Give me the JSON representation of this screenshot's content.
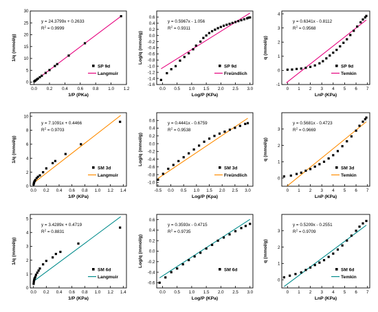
{
  "colors": {
    "langmuir_fit": "#e6007e",
    "other_fit": "#ff8c00",
    "sm6d_fit": "#008b8b",
    "points": "#000000",
    "axis": "#000000"
  },
  "chart_data": [
    {
      "type": "scatter",
      "panel": "SP 9d Langmuir",
      "xlabel": "1/P (PKa)",
      "ylabel": "1/q (mmol/g)",
      "xlim": [
        -0.05,
        1.2
      ],
      "ylim": [
        -1,
        30
      ],
      "xticks": [
        0.0,
        0.2,
        0.4,
        0.6,
        0.8,
        1.0,
        1.2
      ],
      "yticks": [
        0,
        5,
        10,
        15,
        20,
        25,
        30
      ],
      "equation": "y = 24.3799x + 0.2633",
      "r2_label": "R",
      "r2_value": "= 0.9999",
      "legend_marker_label": "SP 9d",
      "legend_line_label": "Langmuir",
      "line_color": "#e6007e",
      "fit": {
        "slope": 24.3799,
        "intercept": 0.2633,
        "x_range": [
          0.0,
          1.13
        ]
      },
      "points": [
        [
          0.003,
          0.33
        ],
        [
          0.01,
          0.5
        ],
        [
          0.02,
          0.75
        ],
        [
          0.035,
          1.1
        ],
        [
          0.05,
          1.5
        ],
        [
          0.075,
          2.1
        ],
        [
          0.1,
          2.7
        ],
        [
          0.15,
          3.9
        ],
        [
          0.2,
          5.1
        ],
        [
          0.27,
          6.8
        ],
        [
          0.3,
          7.6
        ],
        [
          0.45,
          11.2
        ],
        [
          0.66,
          16.4
        ],
        [
          1.13,
          27.8
        ]
      ]
    },
    {
      "type": "scatter",
      "panel": "SP 9d Freundlich",
      "xlabel": "Log/P (KPa)",
      "ylabel": "Log/q (mmol/g)",
      "xlim": [
        -0.2,
        3.1
      ],
      "ylim": [
        -1.6,
        0.8
      ],
      "xticks": [
        0.0,
        0.5,
        1.0,
        1.5,
        2.0,
        2.5,
        3.0
      ],
      "yticks": [
        -1.6,
        -1.4,
        -1.2,
        -1.0,
        -0.8,
        -0.6,
        -0.4,
        -0.2,
        0.0,
        0.2,
        0.4,
        0.6
      ],
      "equation": "y = 0.5967x - 1.056",
      "r2_label": "R",
      "r2_value": "= 0.9311",
      "legend_marker_label": "SP 9d",
      "legend_line_label": "Freündlich",
      "line_color": "#e6007e",
      "fit": {
        "slope": 0.5967,
        "intercept": -1.056,
        "x_range": [
          -0.05,
          3.0
        ]
      },
      "points": [
        [
          -0.05,
          -1.45
        ],
        [
          0.15,
          -1.23
        ],
        [
          0.3,
          -1.1
        ],
        [
          0.45,
          -1.0
        ],
        [
          0.6,
          -0.82
        ],
        [
          0.75,
          -0.7
        ],
        [
          0.9,
          -0.58
        ],
        [
          1.05,
          -0.45
        ],
        [
          1.15,
          -0.33
        ],
        [
          1.3,
          -0.2
        ],
        [
          1.4,
          -0.08
        ],
        [
          1.5,
          0.0
        ],
        [
          1.6,
          0.08
        ],
        [
          1.7,
          0.14
        ],
        [
          1.8,
          0.19
        ],
        [
          1.9,
          0.24
        ],
        [
          2.0,
          0.28
        ],
        [
          2.1,
          0.32
        ],
        [
          2.2,
          0.35
        ],
        [
          2.3,
          0.38
        ],
        [
          2.4,
          0.41
        ],
        [
          2.5,
          0.44
        ],
        [
          2.6,
          0.47
        ],
        [
          2.7,
          0.5
        ],
        [
          2.8,
          0.53
        ],
        [
          2.9,
          0.56
        ],
        [
          2.95,
          0.58
        ],
        [
          3.0,
          0.59
        ]
      ]
    },
    {
      "type": "scatter",
      "panel": "SP 9d Temkin",
      "xlabel": "LnP (KPa)",
      "ylabel": "q (mmol/g)",
      "xlim": [
        -0.5,
        7.2
      ],
      "ylim": [
        -1,
        4.2
      ],
      "xticks": [
        0,
        1,
        2,
        3,
        4,
        5,
        6,
        7
      ],
      "yticks": [
        -1,
        0,
        1,
        2,
        3,
        4
      ],
      "equation": "y = 0.6341x - 0.8112",
      "r2_label": "R",
      "r2_value": "= 0.9568",
      "legend_marker_label": "SP 9d",
      "legend_line_label": "Temkin",
      "line_color": "#e6007e",
      "fit": {
        "slope": 0.6341,
        "intercept": -0.8112,
        "x_range": [
          -0.1,
          6.9
        ]
      },
      "points": [
        [
          0.0,
          0.05
        ],
        [
          0.4,
          0.06
        ],
        [
          0.8,
          0.1
        ],
        [
          1.2,
          0.13
        ],
        [
          1.6,
          0.18
        ],
        [
          2.0,
          0.25
        ],
        [
          2.4,
          0.35
        ],
        [
          2.8,
          0.5
        ],
        [
          3.1,
          0.65
        ],
        [
          3.4,
          0.85
        ],
        [
          3.7,
          1.05
        ],
        [
          4.0,
          1.25
        ],
        [
          4.3,
          1.45
        ],
        [
          4.6,
          1.7
        ],
        [
          4.9,
          1.95
        ],
        [
          5.2,
          2.2
        ],
        [
          5.5,
          2.5
        ],
        [
          5.8,
          2.8
        ],
        [
          6.1,
          3.1
        ],
        [
          6.4,
          3.4
        ],
        [
          6.6,
          3.6
        ],
        [
          6.8,
          3.75
        ],
        [
          6.9,
          3.85
        ]
      ]
    },
    {
      "type": "scatter",
      "panel": "SM 3d Langmuir",
      "xlabel": "1/P (KPa)",
      "ylabel": "1/q (mmol/g)",
      "xlim": [
        -0.05,
        1.45
      ],
      "ylim": [
        0,
        10.5
      ],
      "xticks": [
        0.0,
        0.2,
        0.4,
        0.6,
        0.8,
        1.0,
        1.2,
        1.4
      ],
      "yticks": [
        0,
        2,
        4,
        6,
        8,
        10
      ],
      "equation": "y = 7.1091x + 0.4466",
      "r2_label": "R",
      "r2_value": "= 0.9703",
      "legend_marker_label": "SM 3d",
      "legend_line_label": "Langmuir",
      "line_color": "#ff8c00",
      "fit": {
        "slope": 7.1091,
        "intercept": 0.4466,
        "x_range": [
          0.0,
          1.36
        ]
      },
      "points": [
        [
          0.003,
          0.25
        ],
        [
          0.007,
          0.45
        ],
        [
          0.012,
          0.6
        ],
        [
          0.02,
          0.75
        ],
        [
          0.03,
          0.9
        ],
        [
          0.05,
          1.15
        ],
        [
          0.07,
          1.35
        ],
        [
          0.1,
          1.55
        ],
        [
          0.15,
          2.0
        ],
        [
          0.2,
          2.55
        ],
        [
          0.3,
          3.3
        ],
        [
          0.34,
          3.6
        ],
        [
          0.5,
          4.6
        ],
        [
          0.74,
          6.0
        ],
        [
          1.35,
          9.2
        ]
      ]
    },
    {
      "type": "scatter",
      "panel": "SM 3d Freundlich",
      "xlabel": "Log/P (Kpa)",
      "ylabel": "Log/q (mmol/g)",
      "xlim": [
        -0.55,
        3.2
      ],
      "ylim": [
        -1.1,
        0.8
      ],
      "xticks": [
        -0.5,
        0.0,
        0.5,
        1.0,
        1.5,
        2.0,
        2.5,
        3.0
      ],
      "yticks": [
        -1.0,
        -0.8,
        -0.6,
        -0.4,
        -0.2,
        0.0,
        0.2,
        0.4,
        0.6
      ],
      "equation": "y = 0.4441x - 0.6759",
      "r2_label": "R",
      "r2_value": "= 0.9538",
      "legend_marker_label": "SM 3d",
      "legend_line_label": "Freündlich",
      "line_color": "#ff8c00",
      "fit": {
        "slope": 0.4441,
        "intercept": -0.6759,
        "x_range": [
          -0.5,
          3.0
        ]
      },
      "points": [
        [
          -0.5,
          -0.93
        ],
        [
          -0.3,
          -0.78
        ],
        [
          -0.1,
          -0.65
        ],
        [
          0.1,
          -0.55
        ],
        [
          0.3,
          -0.45
        ],
        [
          0.5,
          -0.35
        ],
        [
          0.7,
          -0.25
        ],
        [
          0.9,
          -0.15
        ],
        [
          1.1,
          -0.05
        ],
        [
          1.3,
          0.05
        ],
        [
          1.5,
          0.13
        ],
        [
          1.7,
          0.2
        ],
        [
          1.9,
          0.26
        ],
        [
          2.1,
          0.31
        ],
        [
          2.3,
          0.36
        ],
        [
          2.5,
          0.41
        ],
        [
          2.7,
          0.46
        ],
        [
          2.9,
          0.51
        ],
        [
          3.0,
          0.53
        ]
      ]
    },
    {
      "type": "scatter",
      "panel": "SM 3d Temkin",
      "xlabel": "LnP (KPa)",
      "ylabel": "q (mmol/g)",
      "xlim": [
        -0.5,
        7.2
      ],
      "ylim": [
        -0.5,
        4.0
      ],
      "xticks": [
        0,
        1,
        2,
        3,
        4,
        5,
        6,
        7
      ],
      "yticks": [
        0,
        1,
        2,
        3
      ],
      "equation": "y = 0.5681x - 0.4723",
      "r2_label": "R",
      "r2_value": "= 0.9669",
      "legend_marker_label": "SM 3d",
      "legend_line_label": "Temkin",
      "line_color": "#ff8c00",
      "fit": {
        "slope": 0.5681,
        "intercept": -0.4723,
        "x_range": [
          -0.3,
          6.9
        ]
      },
      "points": [
        [
          -0.3,
          0.1
        ],
        [
          0.3,
          0.15
        ],
        [
          0.8,
          0.25
        ],
        [
          1.2,
          0.33
        ],
        [
          1.6,
          0.45
        ],
        [
          2.0,
          0.55
        ],
        [
          2.4,
          0.7
        ],
        [
          2.8,
          0.85
        ],
        [
          3.2,
          1.0
        ],
        [
          3.6,
          1.2
        ],
        [
          4.0,
          1.4
        ],
        [
          4.4,
          1.65
        ],
        [
          4.8,
          1.95
        ],
        [
          5.2,
          2.25
        ],
        [
          5.6,
          2.55
        ],
        [
          6.0,
          2.9
        ],
        [
          6.3,
          3.2
        ],
        [
          6.6,
          3.45
        ],
        [
          6.8,
          3.6
        ],
        [
          6.9,
          3.7
        ]
      ]
    },
    {
      "type": "scatter",
      "panel": "SM 6d Langmuir",
      "xlabel": "1/P (KPa)",
      "ylabel": "1/q (mmol/g)",
      "xlim": [
        -0.05,
        1.45
      ],
      "ylim": [
        0,
        5.3
      ],
      "xticks": [
        0.0,
        0.2,
        0.4,
        0.6,
        0.8,
        1.0,
        1.2,
        1.4
      ],
      "yticks": [
        0,
        1,
        2,
        3,
        4,
        5
      ],
      "equation": "y = 3.4289x + 0.4719",
      "r2_label": "R",
      "r2_value": "= 0.8831",
      "legend_marker_label": "SM 6d",
      "legend_line_label": "Langmuir",
      "line_color": "#008b8b",
      "fit": {
        "slope": 3.4289,
        "intercept": 0.4719,
        "x_range": [
          0.0,
          1.36
        ]
      },
      "points": [
        [
          0.003,
          0.3
        ],
        [
          0.006,
          0.45
        ],
        [
          0.01,
          0.55
        ],
        [
          0.015,
          0.65
        ],
        [
          0.02,
          0.7
        ],
        [
          0.03,
          0.8
        ],
        [
          0.04,
          0.95
        ],
        [
          0.06,
          1.1
        ],
        [
          0.08,
          1.25
        ],
        [
          0.1,
          1.4
        ],
        [
          0.15,
          1.7
        ],
        [
          0.2,
          1.95
        ],
        [
          0.3,
          2.2
        ],
        [
          0.35,
          2.45
        ],
        [
          0.42,
          2.6
        ],
        [
          0.7,
          3.2
        ],
        [
          1.35,
          4.35
        ]
      ]
    },
    {
      "type": "scatter",
      "panel": "SM 6d Freundlich",
      "xlabel": "Log/P (KPa)",
      "ylabel": "Log/q (mmol/g)",
      "xlim": [
        -0.2,
        3.1
      ],
      "ylim": [
        -0.7,
        0.7
      ],
      "xticks": [
        0.0,
        0.5,
        1.0,
        1.5,
        2.0,
        2.5,
        3.0
      ],
      "yticks": [
        -0.6,
        -0.4,
        -0.2,
        0.0,
        0.2,
        0.4,
        0.6
      ],
      "equation": "y = 0.3593x - 0.4715",
      "r2_label": "R",
      "r2_value": "= 0.9735",
      "legend_marker_label": "SM 6d",
      "legend_line_label": "",
      "line_color": "#008b8b",
      "fit": {
        "slope": 0.3593,
        "intercept": -0.4715,
        "x_range": [
          -0.1,
          3.0
        ]
      },
      "points": [
        [
          -0.1,
          -0.6
        ],
        [
          0.1,
          -0.5
        ],
        [
          0.3,
          -0.4
        ],
        [
          0.5,
          -0.33
        ],
        [
          0.7,
          -0.25
        ],
        [
          0.9,
          -0.17
        ],
        [
          1.1,
          -0.1
        ],
        [
          1.3,
          -0.03
        ],
        [
          1.5,
          0.05
        ],
        [
          1.7,
          0.12
        ],
        [
          1.9,
          0.2
        ],
        [
          2.1,
          0.26
        ],
        [
          2.3,
          0.32
        ],
        [
          2.5,
          0.38
        ],
        [
          2.7,
          0.44
        ],
        [
          2.85,
          0.48
        ],
        [
          3.0,
          0.52
        ]
      ]
    },
    {
      "type": "scatter",
      "panel": "SM 6d Temkin",
      "xlabel": "LnP (KPa)",
      "ylabel": "q (mmol/g)",
      "xlim": [
        -0.5,
        7.2
      ],
      "ylim": [
        -0.5,
        4.0
      ],
      "xticks": [
        0,
        1,
        2,
        3,
        4,
        5,
        6,
        7
      ],
      "yticks": [
        0,
        1,
        2,
        3
      ],
      "equation": "y = 0.5209x - 0.2551",
      "r2_label": "R",
      "r2_value": "= 0.9709",
      "legend_marker_label": "SM 6d",
      "legend_line_label": "Temkin",
      "line_color": "#008b8b",
      "fit": {
        "slope": 0.5209,
        "intercept": -0.2551,
        "x_range": [
          -0.3,
          6.9
        ]
      },
      "points": [
        [
          -0.3,
          0.15
        ],
        [
          0.2,
          0.25
        ],
        [
          0.7,
          0.35
        ],
        [
          1.2,
          0.45
        ],
        [
          1.6,
          0.6
        ],
        [
          2.0,
          0.75
        ],
        [
          2.4,
          0.9
        ],
        [
          2.8,
          1.05
        ],
        [
          3.2,
          1.2
        ],
        [
          3.6,
          1.4
        ],
        [
          4.0,
          1.6
        ],
        [
          4.4,
          1.85
        ],
        [
          4.8,
          2.1
        ],
        [
          5.2,
          2.4
        ],
        [
          5.6,
          2.7
        ],
        [
          6.0,
          3.0
        ],
        [
          6.3,
          3.25
        ],
        [
          6.6,
          3.45
        ],
        [
          6.9,
          3.6
        ]
      ]
    }
  ]
}
